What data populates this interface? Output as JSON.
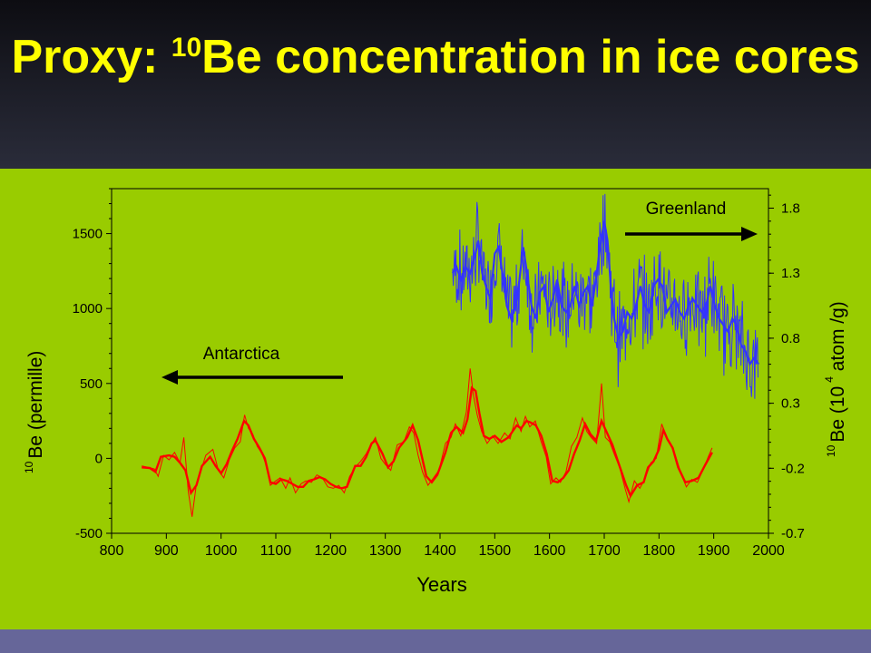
{
  "slide": {
    "title_prefix": "Proxy: ",
    "title_superscript": "10",
    "title_suffix": "Be concentration in ice cores"
  },
  "colors": {
    "header_text": "#ffff00",
    "panel_background": "#99cc00",
    "footer_bar": "#666699",
    "antarctica_series": "#ff0000",
    "greenland_series": "#3333ff",
    "arrow": "#000000"
  },
  "chart_data": {
    "type": "line",
    "xlabel": "Years",
    "ylabel_left_sup": "10",
    "ylabel_left": "Be (permille)",
    "ylabel_right_sup": "10",
    "ylabel_right_main": "Be (10",
    "ylabel_right_exp": "4",
    "ylabel_right_tail": " atom /g)",
    "xlim": [
      800,
      2000
    ],
    "ylim_left": [
      -500,
      1800
    ],
    "ylim_right": [
      -0.7,
      1.95
    ],
    "x_ticks": [
      800,
      900,
      1000,
      1100,
      1200,
      1300,
      1400,
      1500,
      1600,
      1700,
      1800,
      1900,
      2000
    ],
    "y_ticks_left": [
      -500,
      0,
      500,
      1000,
      1500
    ],
    "y_ticks_right": [
      -0.7,
      -0.2,
      0.3,
      0.8,
      1.3,
      1.8
    ],
    "y_tick_labels_right": [
      "-0.7",
      "-0.2",
      "0.3",
      "0.8",
      "1.3",
      "1.8"
    ],
    "annotations": [
      {
        "text": "Antarctica",
        "arrow": "left"
      },
      {
        "text": "Greenland",
        "arrow": "right"
      }
    ],
    "series": [
      {
        "name": "Antarctica",
        "axis": "left",
        "color": "#ff0000",
        "smoothed": [
          [
            855,
            -60
          ],
          [
            870,
            -65
          ],
          [
            880,
            -90
          ],
          [
            890,
            10
          ],
          [
            905,
            20
          ],
          [
            915,
            10
          ],
          [
            925,
            -30
          ],
          [
            935,
            -80
          ],
          [
            945,
            -230
          ],
          [
            955,
            -180
          ],
          [
            965,
            -50
          ],
          [
            980,
            10
          ],
          [
            990,
            -50
          ],
          [
            1000,
            -100
          ],
          [
            1010,
            -40
          ],
          [
            1020,
            50
          ],
          [
            1030,
            130
          ],
          [
            1042,
            250
          ],
          [
            1050,
            220
          ],
          [
            1060,
            130
          ],
          [
            1070,
            70
          ],
          [
            1080,
            0
          ],
          [
            1090,
            -160
          ],
          [
            1100,
            -170
          ],
          [
            1110,
            -140
          ],
          [
            1120,
            -150
          ],
          [
            1130,
            -170
          ],
          [
            1140,
            -190
          ],
          [
            1150,
            -190
          ],
          [
            1160,
            -150
          ],
          [
            1170,
            -140
          ],
          [
            1180,
            -125
          ],
          [
            1190,
            -140
          ],
          [
            1200,
            -170
          ],
          [
            1210,
            -190
          ],
          [
            1220,
            -200
          ],
          [
            1230,
            -190
          ],
          [
            1245,
            -50
          ],
          [
            1255,
            -50
          ],
          [
            1265,
            10
          ],
          [
            1275,
            100
          ],
          [
            1282,
            120
          ],
          [
            1295,
            30
          ],
          [
            1305,
            -60
          ],
          [
            1315,
            -20
          ],
          [
            1325,
            70
          ],
          [
            1340,
            140
          ],
          [
            1350,
            220
          ],
          [
            1360,
            120
          ],
          [
            1375,
            -120
          ],
          [
            1385,
            -160
          ],
          [
            1395,
            -110
          ],
          [
            1410,
            40
          ],
          [
            1420,
            170
          ],
          [
            1430,
            210
          ],
          [
            1442,
            170
          ],
          [
            1450,
            260
          ],
          [
            1458,
            470
          ],
          [
            1465,
            450
          ],
          [
            1472,
            300
          ],
          [
            1480,
            150
          ],
          [
            1490,
            130
          ],
          [
            1500,
            150
          ],
          [
            1512,
            110
          ],
          [
            1525,
            140
          ],
          [
            1540,
            220
          ],
          [
            1548,
            200
          ],
          [
            1558,
            250
          ],
          [
            1565,
            240
          ],
          [
            1575,
            220
          ],
          [
            1585,
            150
          ],
          [
            1595,
            30
          ],
          [
            1605,
            -150
          ],
          [
            1615,
            -160
          ],
          [
            1625,
            -130
          ],
          [
            1635,
            -80
          ],
          [
            1645,
            30
          ],
          [
            1655,
            120
          ],
          [
            1665,
            230
          ],
          [
            1675,
            160
          ],
          [
            1685,
            120
          ],
          [
            1695,
            250
          ],
          [
            1705,
            170
          ],
          [
            1715,
            90
          ],
          [
            1725,
            -20
          ],
          [
            1740,
            -180
          ],
          [
            1748,
            -250
          ],
          [
            1760,
            -180
          ],
          [
            1772,
            -160
          ],
          [
            1780,
            -60
          ],
          [
            1790,
            -20
          ],
          [
            1800,
            60
          ],
          [
            1808,
            190
          ],
          [
            1815,
            130
          ],
          [
            1825,
            70
          ],
          [
            1835,
            -60
          ],
          [
            1848,
            -160
          ],
          [
            1860,
            -150
          ],
          [
            1872,
            -130
          ],
          [
            1885,
            -40
          ],
          [
            1897,
            40
          ]
        ],
        "annual": [
          [
            855,
            -50
          ],
          [
            868,
            -60
          ],
          [
            878,
            -70
          ],
          [
            885,
            -120
          ],
          [
            895,
            20
          ],
          [
            905,
            -10
          ],
          [
            915,
            40
          ],
          [
            925,
            -30
          ],
          [
            932,
            140
          ],
          [
            940,
            -220
          ],
          [
            947,
            -390
          ],
          [
            955,
            -170
          ],
          [
            965,
            -60
          ],
          [
            972,
            20
          ],
          [
            985,
            60
          ],
          [
            995,
            -80
          ],
          [
            1005,
            -130
          ],
          [
            1015,
            -10
          ],
          [
            1025,
            70
          ],
          [
            1035,
            110
          ],
          [
            1043,
            290
          ],
          [
            1050,
            200
          ],
          [
            1058,
            160
          ],
          [
            1066,
            80
          ],
          [
            1075,
            30
          ],
          [
            1082,
            -40
          ],
          [
            1090,
            -180
          ],
          [
            1100,
            -150
          ],
          [
            1108,
            -130
          ],
          [
            1118,
            -200
          ],
          [
            1126,
            -130
          ],
          [
            1136,
            -230
          ],
          [
            1146,
            -170
          ],
          [
            1155,
            -150
          ],
          [
            1165,
            -160
          ],
          [
            1175,
            -110
          ],
          [
            1185,
            -130
          ],
          [
            1195,
            -190
          ],
          [
            1205,
            -200
          ],
          [
            1215,
            -180
          ],
          [
            1225,
            -230
          ],
          [
            1235,
            -120
          ],
          [
            1245,
            -60
          ],
          [
            1255,
            -20
          ],
          [
            1265,
            30
          ],
          [
            1272,
            80
          ],
          [
            1282,
            140
          ],
          [
            1292,
            0
          ],
          [
            1300,
            -40
          ],
          [
            1310,
            -80
          ],
          [
            1322,
            90
          ],
          [
            1334,
            110
          ],
          [
            1344,
            210
          ],
          [
            1352,
            170
          ],
          [
            1360,
            20
          ],
          [
            1368,
            -90
          ],
          [
            1378,
            -180
          ],
          [
            1388,
            -130
          ],
          [
            1398,
            -80
          ],
          [
            1410,
            100
          ],
          [
            1420,
            140
          ],
          [
            1428,
            230
          ],
          [
            1438,
            150
          ],
          [
            1448,
            310
          ],
          [
            1455,
            600
          ],
          [
            1461,
            420
          ],
          [
            1468,
            290
          ],
          [
            1476,
            180
          ],
          [
            1486,
            100
          ],
          [
            1496,
            150
          ],
          [
            1506,
            100
          ],
          [
            1518,
            170
          ],
          [
            1528,
            130
          ],
          [
            1538,
            270
          ],
          [
            1548,
            180
          ],
          [
            1556,
            280
          ],
          [
            1564,
            210
          ],
          [
            1574,
            250
          ],
          [
            1584,
            120
          ],
          [
            1594,
            10
          ],
          [
            1602,
            -170
          ],
          [
            1612,
            -130
          ],
          [
            1620,
            -160
          ],
          [
            1630,
            -90
          ],
          [
            1640,
            80
          ],
          [
            1650,
            140
          ],
          [
            1660,
            270
          ],
          [
            1668,
            180
          ],
          [
            1676,
            140
          ],
          [
            1686,
            100
          ],
          [
            1695,
            500
          ],
          [
            1702,
            140
          ],
          [
            1710,
            110
          ],
          [
            1718,
            30
          ],
          [
            1728,
            -60
          ],
          [
            1738,
            -200
          ],
          [
            1745,
            -290
          ],
          [
            1755,
            -150
          ],
          [
            1765,
            -200
          ],
          [
            1775,
            -130
          ],
          [
            1785,
            -30
          ],
          [
            1795,
            0
          ],
          [
            1805,
            230
          ],
          [
            1812,
            150
          ],
          [
            1820,
            100
          ],
          [
            1830,
            20
          ],
          [
            1840,
            -100
          ],
          [
            1850,
            -190
          ],
          [
            1860,
            -140
          ],
          [
            1870,
            -160
          ],
          [
            1880,
            -80
          ],
          [
            1890,
            10
          ],
          [
            1897,
            70
          ]
        ]
      },
      {
        "name": "Greenland",
        "axis": "right",
        "color": "#3333ff",
        "smoothed": [
          [
            1423,
            1.3
          ],
          [
            1430,
            1.35
          ],
          [
            1438,
            1.25
          ],
          [
            1446,
            1.35
          ],
          [
            1455,
            1.3
          ],
          [
            1462,
            1.4
          ],
          [
            1470,
            1.55
          ],
          [
            1477,
            1.3
          ],
          [
            1484,
            1.2
          ],
          [
            1492,
            1.1
          ],
          [
            1500,
            1.45
          ],
          [
            1507,
            1.5
          ],
          [
            1514,
            1.3
          ],
          [
            1522,
            1.05
          ],
          [
            1530,
            0.95
          ],
          [
            1538,
            1.05
          ],
          [
            1545,
            1.25
          ],
          [
            1552,
            1.5
          ],
          [
            1559,
            1.3
          ],
          [
            1567,
            1.05
          ],
          [
            1575,
            0.95
          ],
          [
            1582,
            1.15
          ],
          [
            1590,
            1.2
          ],
          [
            1598,
            1.0
          ],
          [
            1606,
            1.1
          ],
          [
            1614,
            1.25
          ],
          [
            1622,
            1.05
          ],
          [
            1630,
            1.0
          ],
          [
            1638,
            1.05
          ],
          [
            1646,
            1.2
          ],
          [
            1654,
            1.05
          ],
          [
            1662,
            1.15
          ],
          [
            1670,
            1.2
          ],
          [
            1678,
            1.05
          ],
          [
            1686,
            1.3
          ],
          [
            1694,
            1.55
          ],
          [
            1700,
            1.7
          ],
          [
            1706,
            1.55
          ],
          [
            1712,
            1.2
          ],
          [
            1718,
            0.95
          ],
          [
            1726,
            0.8
          ],
          [
            1734,
            0.85
          ],
          [
            1742,
            1.0
          ],
          [
            1750,
            0.95
          ],
          [
            1758,
            1.05
          ],
          [
            1766,
            1.2
          ],
          [
            1774,
            1.05
          ],
          [
            1782,
            1.0
          ],
          [
            1790,
            1.2
          ],
          [
            1798,
            1.25
          ],
          [
            1806,
            1.2
          ],
          [
            1814,
            1.0
          ],
          [
            1822,
            1.05
          ],
          [
            1830,
            1.1
          ],
          [
            1838,
            1.0
          ],
          [
            1846,
            0.95
          ],
          [
            1854,
            1.05
          ],
          [
            1862,
            1.1
          ],
          [
            1870,
            1.05
          ],
          [
            1878,
            1.0
          ],
          [
            1886,
            1.05
          ],
          [
            1894,
            1.2
          ],
          [
            1902,
            1.05
          ],
          [
            1910,
            0.95
          ],
          [
            1918,
            0.9
          ],
          [
            1926,
            0.85
          ],
          [
            1934,
            0.95
          ],
          [
            1942,
            0.9
          ],
          [
            1950,
            0.75
          ],
          [
            1958,
            0.7
          ],
          [
            1966,
            0.6
          ],
          [
            1974,
            0.65
          ],
          [
            1982,
            0.6
          ]
        ]
      }
    ]
  }
}
